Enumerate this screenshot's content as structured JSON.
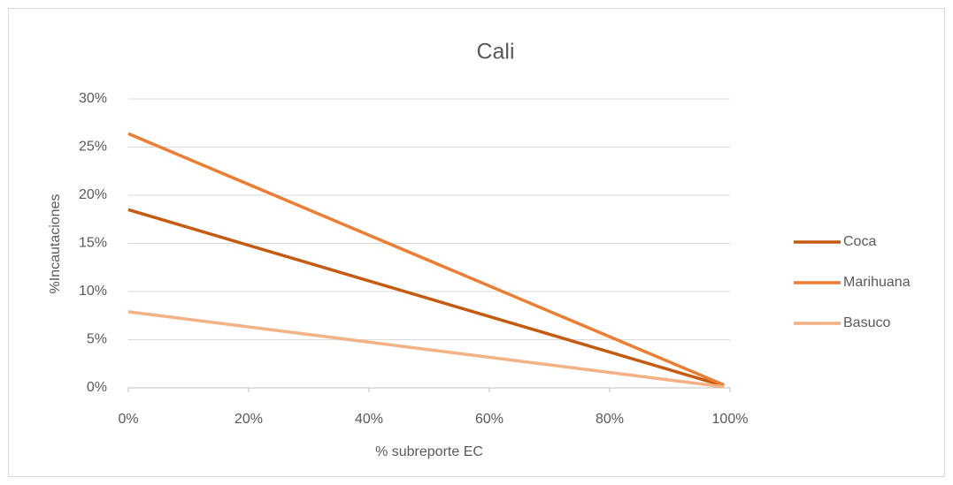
{
  "chart_data": {
    "type": "line",
    "title": "Cali",
    "x_label": "% subreporte EC",
    "y_label": "%Incautaciones",
    "x": [
      0,
      99
    ],
    "series": [
      {
        "name": "Coca",
        "color": "#c55a11",
        "values": [
          18.5,
          0.2
        ]
      },
      {
        "name": "Marihuana",
        "color": "#ed7d31",
        "values": [
          26.4,
          0.3
        ]
      },
      {
        "name": "Basuco",
        "color": "#f4b183",
        "values": [
          7.9,
          0.1
        ]
      }
    ],
    "xlim": [
      0,
      100
    ],
    "xticks": [
      {
        "value": 0,
        "label": "0%"
      },
      {
        "value": 20,
        "label": "20%"
      },
      {
        "value": 40,
        "label": "40%"
      },
      {
        "value": 60,
        "label": "60%"
      },
      {
        "value": 80,
        "label": "80%"
      },
      {
        "value": 100,
        "label": "100%"
      }
    ],
    "ylim": [
      0,
      30
    ],
    "yticks": [
      {
        "value": 0,
        "label": "0%"
      },
      {
        "value": 5,
        "label": "5%"
      },
      {
        "value": 10,
        "label": "10%"
      },
      {
        "value": 15,
        "label": "15%"
      },
      {
        "value": 20,
        "label": "20%"
      },
      {
        "value": 25,
        "label": "25%"
      },
      {
        "value": 30,
        "label": "30%"
      }
    ],
    "grid": true,
    "legend": "right"
  }
}
